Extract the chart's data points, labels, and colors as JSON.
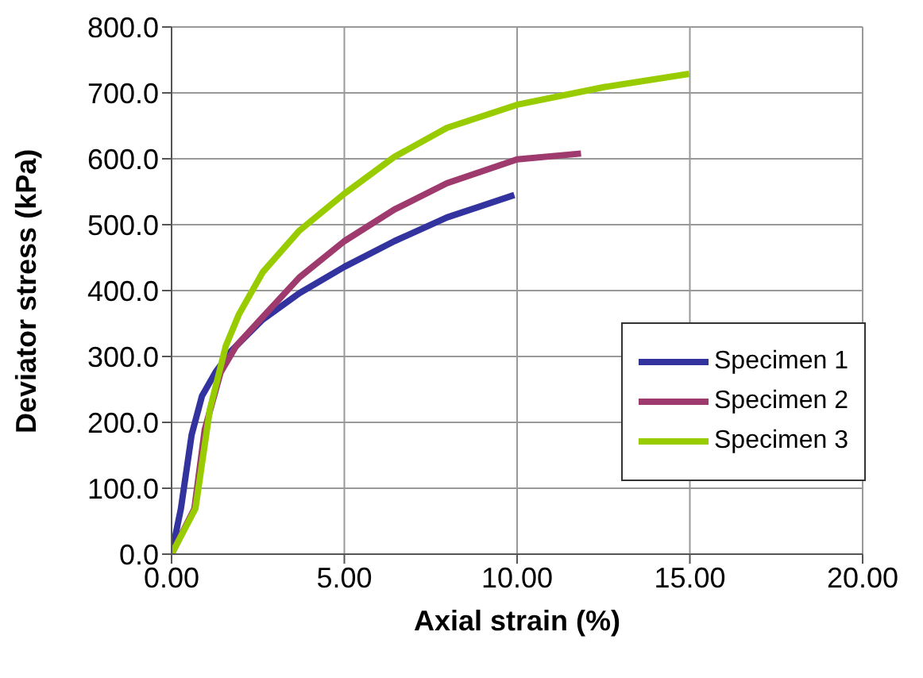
{
  "chart_data": {
    "type": "line",
    "xlabel": "Axial strain (%)",
    "ylabel": "Deviator stress (kPa)",
    "xlim": [
      0,
      20
    ],
    "xticks": [
      {
        "value": 0,
        "label": "0.00"
      },
      {
        "value": 5,
        "label": "5.00"
      },
      {
        "value": 10,
        "label": "10.00"
      },
      {
        "value": 15,
        "label": "15.00"
      },
      {
        "value": 20,
        "label": "20.00"
      }
    ],
    "ylim": [
      0,
      800
    ],
    "yticks": [
      {
        "value": 0,
        "label": "0.0"
      },
      {
        "value": 100,
        "label": "100.0"
      },
      {
        "value": 200,
        "label": "200.0"
      },
      {
        "value": 300,
        "label": "300.0"
      },
      {
        "value": 400,
        "label": "400.0"
      },
      {
        "value": 500,
        "label": "500.0"
      },
      {
        "value": 600,
        "label": "600.0"
      },
      {
        "value": 700,
        "label": "700.0"
      },
      {
        "value": 800,
        "label": "800.0"
      }
    ],
    "grid": true,
    "legend": "right",
    "marker": "none",
    "line_style": "solid",
    "series": [
      {
        "name": "Specimen 1",
        "color": "#3333a0",
        "x": [
          0,
          0.27,
          0.58,
          0.88,
          1.27,
          1.72,
          2.64,
          3.7,
          5,
          6.45,
          7.97,
          9.92
        ],
        "values": [
          0,
          69,
          181,
          240,
          276,
          308,
          356,
          396,
          436,
          475,
          511,
          545
        ]
      },
      {
        "name": "Specimen 2",
        "color": "#9e3a6e",
        "x": [
          0,
          0.66,
          0.96,
          1.42,
          1.87,
          2.64,
          3.7,
          5,
          6.45,
          7.97,
          10,
          11.85
        ],
        "values": [
          0,
          69,
          189,
          276,
          316,
          360,
          420,
          475,
          523,
          563,
          599,
          608
        ]
      },
      {
        "name": "Specimen 3",
        "color": "#99cc00",
        "x": [
          0,
          0.69,
          1.11,
          1.57,
          1.95,
          2.64,
          3.7,
          5,
          6.45,
          7.97,
          10,
          12.54,
          14.98
        ],
        "values": [
          0,
          69,
          220,
          316,
          364,
          428,
          491,
          547,
          603,
          647,
          682,
          709,
          729
        ]
      }
    ]
  }
}
